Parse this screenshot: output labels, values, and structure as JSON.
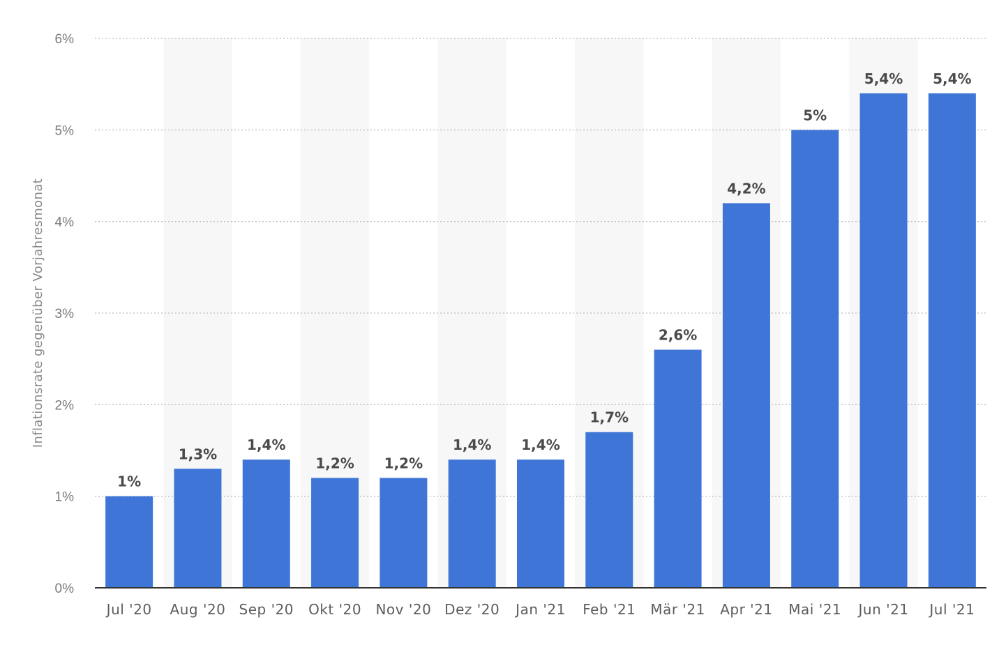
{
  "chart_data": {
    "type": "bar",
    "categories": [
      "Jul '20",
      "Aug '20",
      "Sep '20",
      "Okt '20",
      "Nov '20",
      "Dez '20",
      "Jan '21",
      "Feb '21",
      "Mär '21",
      "Apr '21",
      "Mai '21",
      "Jun '21",
      "Jul '21"
    ],
    "values": [
      1.0,
      1.3,
      1.4,
      1.2,
      1.2,
      1.4,
      1.4,
      1.7,
      2.6,
      4.2,
      5.0,
      5.4,
      5.4
    ],
    "value_labels": [
      "1%",
      "1,3%",
      "1,4%",
      "1,2%",
      "1,2%",
      "1,4%",
      "1,4%",
      "1,7%",
      "2,6%",
      "4,2%",
      "5%",
      "5,4%",
      "5,4%"
    ],
    "ylabel": "Inflationsrate gegenüber Vorjahresmonat",
    "xlabel": "",
    "ylim": [
      0,
      6
    ],
    "yticks": [
      0,
      1,
      2,
      3,
      4,
      5,
      6
    ],
    "ytick_labels": [
      "0%",
      "1%",
      "2%",
      "3%",
      "4%",
      "5%",
      "6%"
    ],
    "grid": "horizontal dotted",
    "alternating_column_bands": true,
    "colors": {
      "bar": "#3e75d7",
      "band": "#f7f7f7",
      "grid": "#bdbdbd",
      "axis": "#333333"
    }
  }
}
